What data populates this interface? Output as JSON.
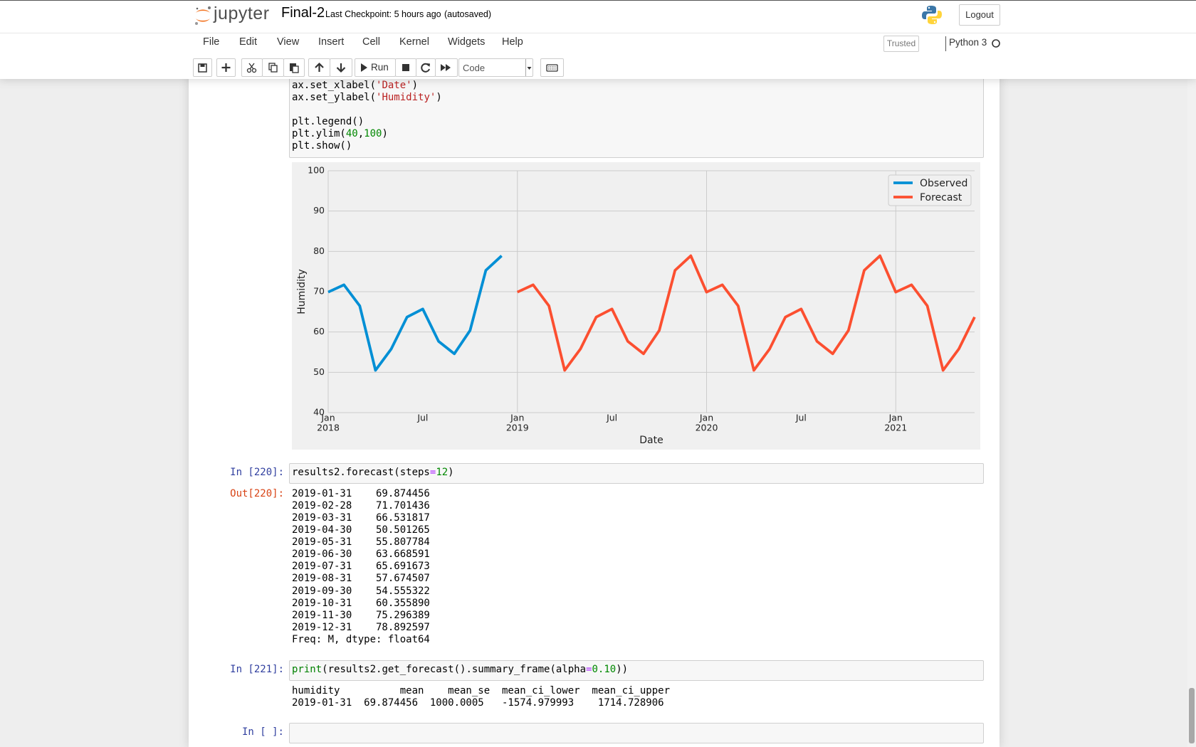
{
  "header": {
    "logo_text": "jupyter",
    "notebook_name": "Final-2",
    "checkpoint": "Last Checkpoint: 5 hours ago",
    "autosave": "(autosaved)",
    "logout": "Logout"
  },
  "menu": [
    "File",
    "Edit",
    "View",
    "Insert",
    "Cell",
    "Kernel",
    "Widgets",
    "Help"
  ],
  "trusted": "Trusted",
  "kernel": "Python 3",
  "toolbar": {
    "run": "Run",
    "cell_type": "Code"
  },
  "cells": [
    {
      "input": [
        {
          "segments": [
            {
              "text": "ax.set_xlabel(",
              "style": "code"
            },
            {
              "text": "'Date'",
              "style": "string"
            },
            {
              "text": ")",
              "style": "code"
            }
          ]
        },
        {
          "segments": [
            {
              "text": "ax.set_ylabel(",
              "style": "code"
            },
            {
              "text": "'Humidity'",
              "style": "string"
            },
            {
              "text": ")",
              "style": "code"
            }
          ]
        },
        {
          "segments": []
        },
        {
          "segments": [
            {
              "text": "plt.legend()",
              "style": "code"
            }
          ]
        },
        {
          "segments": [
            {
              "text": "plt.ylim(",
              "style": "code"
            },
            {
              "text": "40",
              "style": "number"
            },
            {
              "text": ",",
              "style": "code"
            },
            {
              "text": "100",
              "style": "number"
            },
            {
              "text": ")",
              "style": "code"
            }
          ]
        },
        {
          "segments": [
            {
              "text": "plt.show()",
              "style": "code"
            }
          ]
        }
      ]
    },
    {
      "prompt_in": "In [220]:",
      "input": [
        {
          "segments": [
            {
              "text": "results2.forecast(steps",
              "style": "code"
            },
            {
              "text": "=",
              "style": "operator"
            },
            {
              "text": "12",
              "style": "number"
            },
            {
              "text": ")",
              "style": "code"
            }
          ]
        }
      ],
      "prompt_out": "Out[220]:",
      "output": [
        "2019-01-31    69.874456",
        "2019-02-28    71.701436",
        "2019-03-31    66.531817",
        "2019-04-30    50.501265",
        "2019-05-31    55.807784",
        "2019-06-30    63.668591",
        "2019-07-31    65.691673",
        "2019-08-31    57.674507",
        "2019-09-30    54.555322",
        "2019-10-31    60.355890",
        "2019-11-30    75.296389",
        "2019-12-31    78.892597",
        "Freq: M, dtype: float64"
      ]
    },
    {
      "prompt_in": "In [221]:",
      "input": [
        {
          "segments": [
            {
              "text": "print",
              "style": "builtin"
            },
            {
              "text": "(results2.get_forecast().summary_frame(alpha",
              "style": "code"
            },
            {
              "text": "=",
              "style": "operator"
            },
            {
              "text": "0.10",
              "style": "number"
            },
            {
              "text": "))",
              "style": "code"
            }
          ]
        }
      ],
      "output": [
        "humidity          mean    mean_se  mean_ci_lower  mean_ci_upper",
        "2019-01-31  69.874456  1000.0005   -1574.979993    1714.728906"
      ]
    },
    {
      "prompt_in": "In [ ]:",
      "input": []
    }
  ],
  "chart_data": {
    "type": "line",
    "xlabel": "Date",
    "ylabel": "Humidity",
    "x": [
      "2018-01",
      "2018-02",
      "2018-03",
      "2018-04",
      "2018-05",
      "2018-06",
      "2018-07",
      "2018-08",
      "2018-09",
      "2018-10",
      "2018-11",
      "2018-12",
      "2019-01",
      "2019-02",
      "2019-03",
      "2019-04",
      "2019-05",
      "2019-06",
      "2019-07",
      "2019-08",
      "2019-09",
      "2019-10",
      "2019-11",
      "2019-12",
      "2020-01",
      "2020-02",
      "2020-03",
      "2020-04",
      "2020-05",
      "2020-06",
      "2020-07",
      "2020-08",
      "2020-09",
      "2020-10",
      "2020-11",
      "2020-12",
      "2021-01",
      "2021-02",
      "2021-03",
      "2021-04",
      "2021-05",
      "2021-06"
    ],
    "series": [
      {
        "name": "Observed",
        "color": "#008fd5",
        "values": [
          69.9,
          71.7,
          66.5,
          50.5,
          55.8,
          63.7,
          65.7,
          57.7,
          54.6,
          60.4,
          75.3,
          78.9,
          null,
          null,
          null,
          null,
          null,
          null,
          null,
          null,
          null,
          null,
          null,
          null,
          null,
          null,
          null,
          null,
          null,
          null,
          null,
          null,
          null,
          null,
          null,
          null,
          null,
          null,
          null,
          null,
          null,
          null
        ]
      },
      {
        "name": "Forecast",
        "color": "#fc4f30",
        "values": [
          null,
          null,
          null,
          null,
          null,
          null,
          null,
          null,
          null,
          null,
          null,
          null,
          69.9,
          71.7,
          66.5,
          50.5,
          55.8,
          63.7,
          65.7,
          57.7,
          54.6,
          60.4,
          75.3,
          78.9,
          69.9,
          71.7,
          66.5,
          50.5,
          55.8,
          63.7,
          65.7,
          57.7,
          54.6,
          60.4,
          75.3,
          78.9,
          69.9,
          71.7,
          66.5,
          50.5,
          55.8,
          63.7
        ]
      }
    ],
    "xlim": [
      "2018-01",
      "2021-06"
    ],
    "xticks": [
      {
        "value": "2018-01",
        "label": "Jan",
        "year": "2018"
      },
      {
        "value": "2018-07",
        "label": "Jul",
        "minor": true
      },
      {
        "value": "2019-01",
        "label": "Jan",
        "year": "2019"
      },
      {
        "value": "2019-07",
        "label": "Jul",
        "minor": true
      },
      {
        "value": "2020-01",
        "label": "Jan",
        "year": "2020"
      },
      {
        "value": "2020-07",
        "label": "Jul",
        "minor": true
      },
      {
        "value": "2021-01",
        "label": "Jan",
        "year": "2021"
      }
    ],
    "ylim": [
      40,
      100
    ],
    "yticks": [
      40,
      50,
      60,
      70,
      80,
      90,
      100
    ],
    "grid": true,
    "legend": "upper right"
  }
}
